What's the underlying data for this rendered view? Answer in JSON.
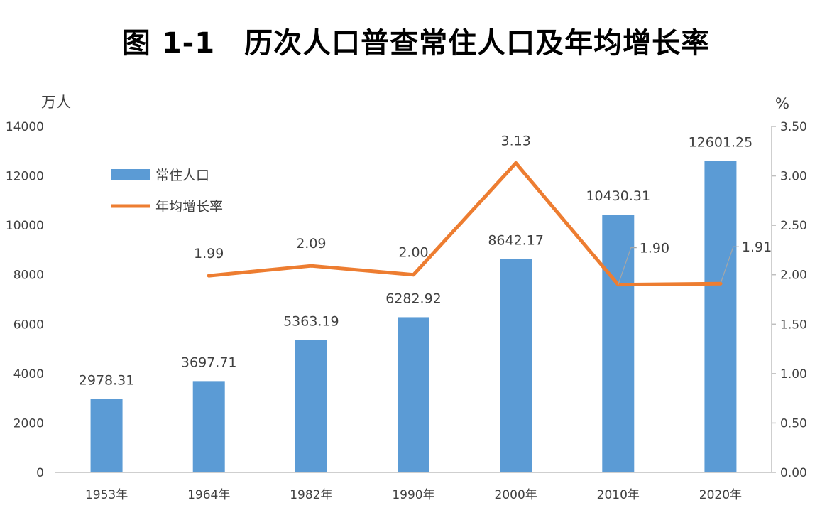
{
  "title": "图 1-1　历次人口普查常住人口及年均增长率",
  "y_left_unit": "万人",
  "y_right_unit": "%",
  "legend": {
    "bar_label": "常住人口",
    "line_label": "年均增长率"
  },
  "colors": {
    "bar": "#5B9BD5",
    "line": "#ED7D31",
    "axis": "#BFBFBF",
    "text": "#404040"
  },
  "chart_data": {
    "type": "bar",
    "categories": [
      "1953年",
      "1964年",
      "1982年",
      "1990年",
      "2000年",
      "2010年",
      "2020年"
    ],
    "series": [
      {
        "name": "常住人口",
        "type": "bar",
        "axis": "left",
        "values": [
          2978.31,
          3697.71,
          5363.19,
          6282.92,
          8642.17,
          10430.31,
          12601.25
        ],
        "labels": [
          "2978.31",
          "3697.71",
          "5363.19",
          "6282.92",
          "8642.17",
          "10430.31",
          "12601.25"
        ]
      },
      {
        "name": "年均增长率",
        "type": "line",
        "axis": "right",
        "values": [
          null,
          1.99,
          2.09,
          2.0,
          3.13,
          1.9,
          1.91
        ],
        "labels": [
          null,
          "1.99",
          "2.09",
          "2.00",
          "3.13",
          "1.90",
          "1.91"
        ]
      }
    ],
    "y_left": {
      "min": 0,
      "max": 14000,
      "ticks": [
        "0",
        "2000",
        "4000",
        "6000",
        "8000",
        "10000",
        "12000",
        "14000"
      ]
    },
    "y_right": {
      "min": 0,
      "max": 3.5,
      "ticks": [
        "0.00",
        "0.50",
        "1.00",
        "1.50",
        "2.00",
        "2.50",
        "3.00",
        "3.50"
      ]
    },
    "grid": false,
    "legend_position": "top-left"
  }
}
